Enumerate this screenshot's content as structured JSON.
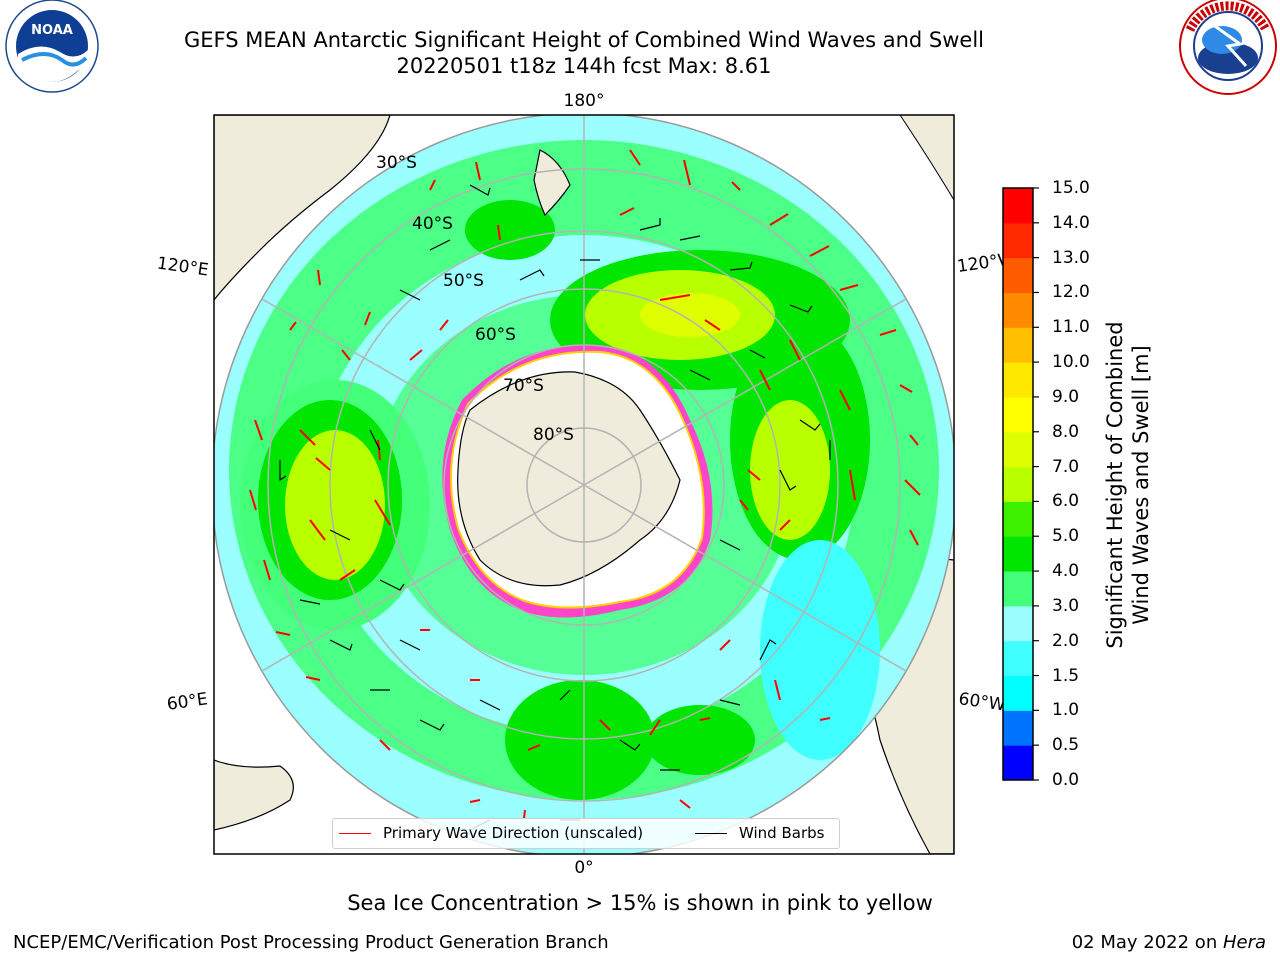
{
  "header": {
    "title_line1": "GEFS MEAN Antarctic Significant Height of Combined Wind Waves and Swell",
    "title_line2": "20220501 t18z 144h fcst   Max: 8.61"
  },
  "logos": {
    "left": {
      "icon": "noaa-logo",
      "text": "NOAA"
    },
    "right": {
      "icon": "nws-logo",
      "ring_text": "NATIONAL WEATHER SERVICE"
    }
  },
  "map": {
    "longitude_labels": {
      "top": "180°",
      "upper_left": "120°E",
      "upper_right": "120°W",
      "lower_left": "60°E",
      "lower_right": "60°W",
      "bottom": "0°"
    },
    "latitude_labels": [
      "30°S",
      "40°S",
      "50°S",
      "60°S",
      "70°S",
      "80°S"
    ],
    "colors": {
      "land": "#efecdc",
      "ice": "#ffffff",
      "ice_edge": "#ff33cc",
      "wave_arrow": "#ff0000",
      "barb": "#000000"
    }
  },
  "legend": {
    "wave_label": "Primary Wave Direction (unscaled)",
    "barb_label": "Wind Barbs"
  },
  "colorbar": {
    "label_line1": "Significant Height of Combined",
    "label_line2": "Wind Waves and Swell [m]",
    "ticks": [
      "0.0",
      "0.5",
      "1.0",
      "1.5",
      "2.0",
      "3.0",
      "4.0",
      "5.0",
      "6.0",
      "7.0",
      "8.0",
      "9.0",
      "10.0",
      "11.0",
      "12.0",
      "13.0",
      "14.0",
      "15.0"
    ],
    "colors": [
      "#0000ff",
      "#0073ff",
      "#00ffff",
      "#3fffff",
      "#9bffff",
      "#43ff7a",
      "#00e600",
      "#3cf000",
      "#b8ff00",
      "#dfff00",
      "#ffff00",
      "#ffe800",
      "#ffbf00",
      "#ff8a00",
      "#ff5c00",
      "#ff2a00",
      "#ff0000"
    ]
  },
  "note": "Sea Ice Concentration > 15% is shown in pink to yellow",
  "footer": {
    "left": "NCEP/EMC/Verification Post Processing Product Generation Branch",
    "right_date": "02 May 2022 on ",
    "right_host": "Hera"
  }
}
